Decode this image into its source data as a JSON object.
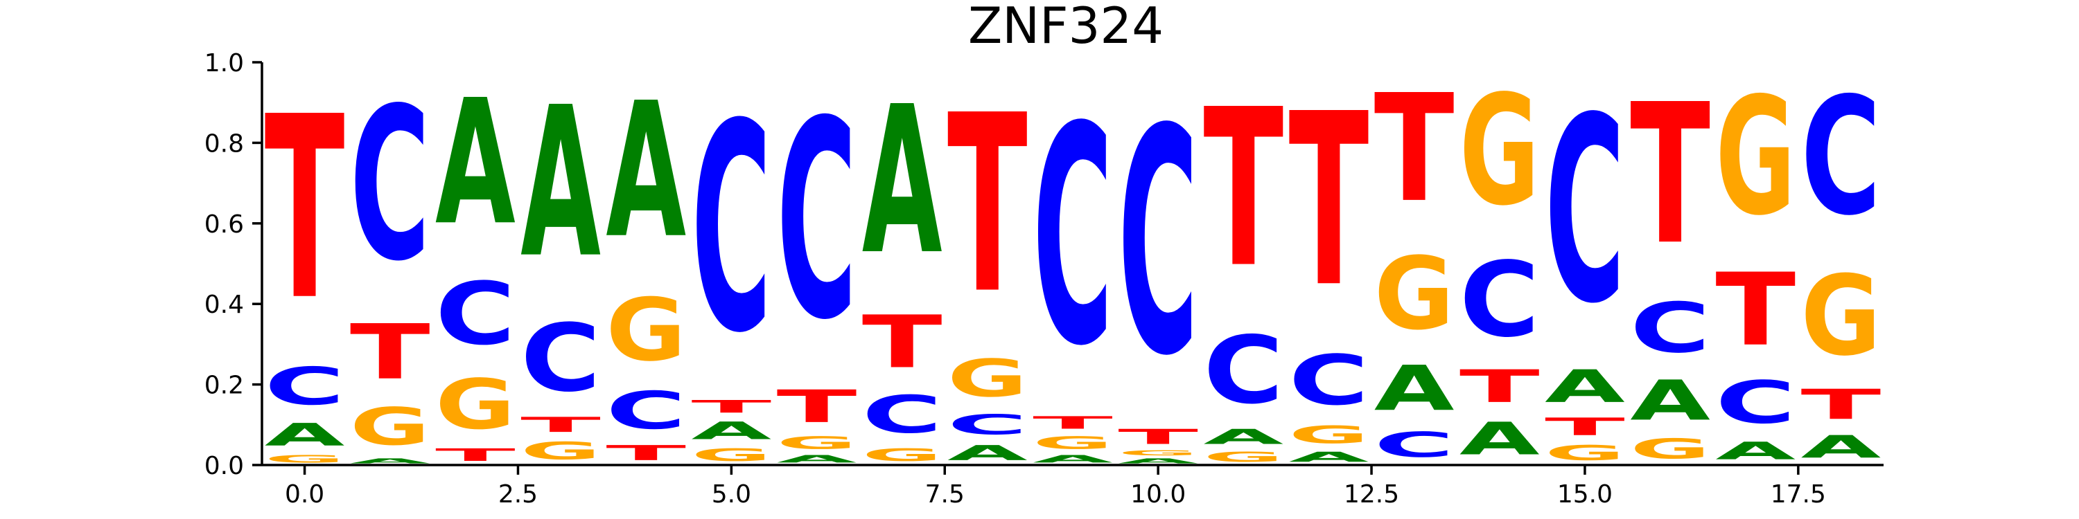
{
  "chart_data": {
    "type": "sequence-logo",
    "title": "ZNF324",
    "xlabel": "",
    "ylabel": "",
    "xlim": [
      -0.5,
      18.5
    ],
    "ylim": [
      0,
      1.0
    ],
    "xticks": [
      0.0,
      2.5,
      5.0,
      7.5,
      10.0,
      12.5,
      15.0,
      17.5
    ],
    "xtick_labels": [
      "0.0",
      "2.5",
      "5.0",
      "7.5",
      "10.0",
      "12.5",
      "15.0",
      "17.5"
    ],
    "yticks": [
      0.0,
      0.2,
      0.4,
      0.6,
      0.8,
      1.0
    ],
    "ytick_labels": [
      "0.0",
      "0.2",
      "0.4",
      "0.6",
      "0.8",
      "1.0"
    ],
    "colors": {
      "A": "#008000",
      "C": "#0000ff",
      "G": "#ffa500",
      "T": "#ff0000"
    },
    "positions": [
      {
        "x": 0,
        "stack": [
          [
            "G",
            0.03
          ],
          [
            "A",
            0.09
          ],
          [
            "C",
            0.15
          ],
          [
            "T",
            0.73
          ]
        ]
      },
      {
        "x": 1,
        "stack": [
          [
            "A",
            0.02
          ],
          [
            "G",
            0.15
          ],
          [
            "T",
            0.22
          ],
          [
            "C",
            0.61
          ]
        ]
      },
      {
        "x": 2,
        "stack": [
          [
            "T",
            0.05
          ],
          [
            "G",
            0.2
          ],
          [
            "C",
            0.25
          ],
          [
            "A",
            0.5
          ]
        ]
      },
      {
        "x": 3,
        "stack": [
          [
            "G",
            0.07
          ],
          [
            "T",
            0.06
          ],
          [
            "C",
            0.27
          ],
          [
            "A",
            0.6
          ]
        ]
      },
      {
        "x": 4,
        "stack": [
          [
            "T",
            0.06
          ],
          [
            "C",
            0.15
          ],
          [
            "G",
            0.25
          ],
          [
            "A",
            0.54
          ]
        ]
      },
      {
        "x": 5,
        "stack": [
          [
            "G",
            0.05
          ],
          [
            "A",
            0.07
          ],
          [
            "T",
            0.05
          ],
          [
            "C",
            0.83
          ]
        ]
      },
      {
        "x": 6,
        "stack": [
          [
            "A",
            0.03
          ],
          [
            "G",
            0.05
          ],
          [
            "T",
            0.13
          ],
          [
            "C",
            0.79
          ]
        ]
      },
      {
        "x": 7,
        "stack": [
          [
            "G",
            0.05
          ],
          [
            "C",
            0.15
          ],
          [
            "T",
            0.21
          ],
          [
            "A",
            0.59
          ]
        ]
      },
      {
        "x": 8,
        "stack": [
          [
            "A",
            0.06
          ],
          [
            "C",
            0.08
          ],
          [
            "G",
            0.15
          ],
          [
            "T",
            0.71
          ]
        ]
      },
      {
        "x": 9,
        "stack": [
          [
            "A",
            0.03
          ],
          [
            "G",
            0.05
          ],
          [
            "T",
            0.05
          ],
          [
            "C",
            0.87
          ]
        ]
      },
      {
        "x": 10,
        "stack": [
          [
            "A",
            0.02
          ],
          [
            "G",
            0.02
          ],
          [
            "T",
            0.06
          ],
          [
            "C",
            0.9
          ]
        ]
      },
      {
        "x": 11,
        "stack": [
          [
            "G",
            0.04
          ],
          [
            "A",
            0.06
          ],
          [
            "C",
            0.27
          ],
          [
            "T",
            0.63
          ]
        ]
      },
      {
        "x": 12,
        "stack": [
          [
            "A",
            0.04
          ],
          [
            "G",
            0.07
          ],
          [
            "C",
            0.2
          ],
          [
            "T",
            0.69
          ]
        ]
      },
      {
        "x": 13,
        "stack": [
          [
            "C",
            0.1
          ],
          [
            "A",
            0.18
          ],
          [
            "G",
            0.29
          ],
          [
            "T",
            0.43
          ]
        ]
      },
      {
        "x": 14,
        "stack": [
          [
            "A",
            0.13
          ],
          [
            "T",
            0.13
          ],
          [
            "C",
            0.3
          ],
          [
            "G",
            0.44
          ]
        ]
      },
      {
        "x": 15,
        "stack": [
          [
            "G",
            0.06
          ],
          [
            "T",
            0.07
          ],
          [
            "A",
            0.13
          ],
          [
            "C",
            0.74
          ]
        ]
      },
      {
        "x": 16,
        "stack": [
          [
            "G",
            0.08
          ],
          [
            "A",
            0.16
          ],
          [
            "C",
            0.2
          ],
          [
            "T",
            0.56
          ]
        ]
      },
      {
        "x": 17,
        "stack": [
          [
            "A",
            0.07
          ],
          [
            "C",
            0.17
          ],
          [
            "T",
            0.29
          ],
          [
            "G",
            0.47
          ]
        ]
      },
      {
        "x": 18,
        "stack": [
          [
            "A",
            0.09
          ],
          [
            "T",
            0.12
          ],
          [
            "G",
            0.32
          ],
          [
            "C",
            0.47
          ]
        ]
      }
    ]
  }
}
